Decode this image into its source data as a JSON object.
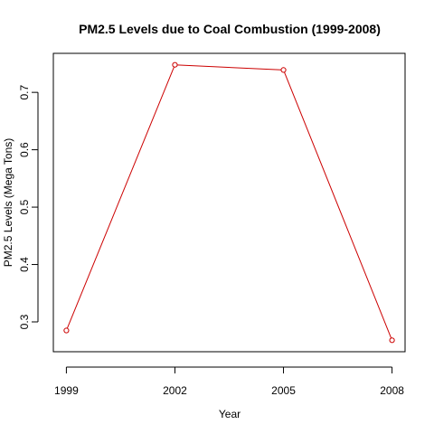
{
  "chart_data": {
    "type": "line",
    "title": "PM2.5 Levels due to Coal Combustion (1999-2008)",
    "xlabel": "Year",
    "ylabel": "PM2.5 Levels (Mega Tons)",
    "x": [
      1999,
      2002,
      2005,
      2008
    ],
    "series": [
      {
        "values": [
          0.285,
          0.748,
          0.739,
          0.268
        ]
      }
    ],
    "x_ticks": [
      "1999",
      "2002",
      "2005",
      "2008"
    ],
    "y_ticks": [
      "0.3",
      "0.4",
      "0.5",
      "0.6",
      "0.7"
    ],
    "xlim": [
      1998.64,
      2008.36
    ],
    "ylim": [
      0.248,
      0.768
    ],
    "line_color": "#cc0000",
    "grid": false,
    "legend": "none"
  }
}
